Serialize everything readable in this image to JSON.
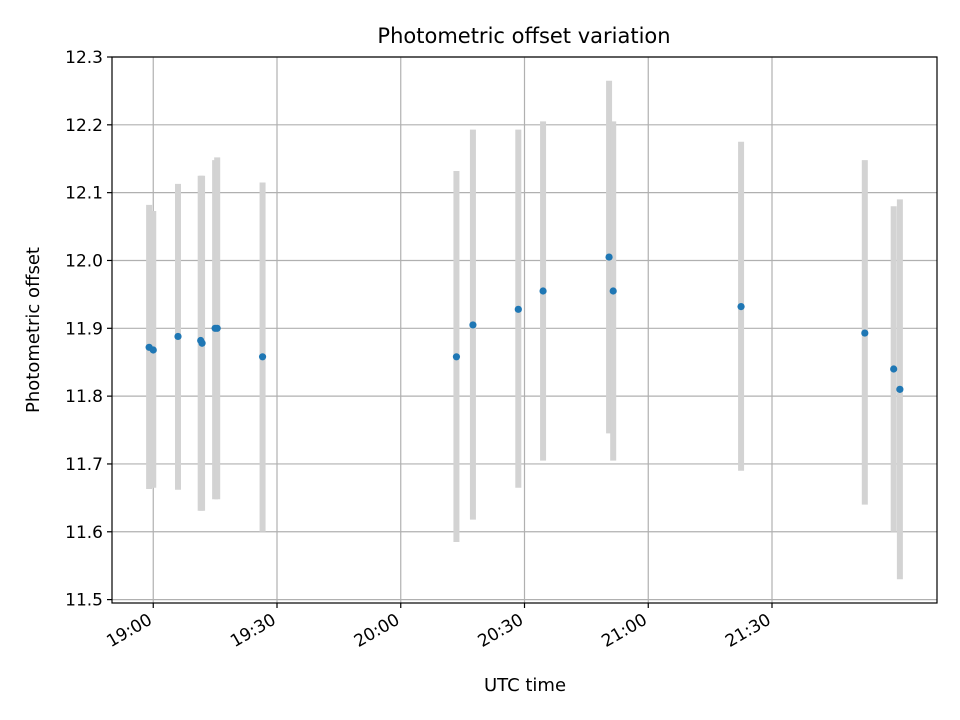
{
  "chart_data": {
    "type": "scatter",
    "title": "Photometric offset variation",
    "xlabel": "UTC time",
    "ylabel": "Photometric offset",
    "xlim": [
      "18:50:00",
      "22:10:00"
    ],
    "ylim": [
      11.495,
      12.3
    ],
    "grid": true,
    "x_ticks": [
      "19:00",
      "19:30",
      "20:00",
      "20:30",
      "21:00",
      "21:30"
    ],
    "y_ticks": [
      "11.5",
      "11.6",
      "11.7",
      "11.8",
      "11.9",
      "12.0",
      "12.1",
      "12.2",
      "12.3"
    ],
    "series": [
      {
        "color": "#1f77b4",
        "error_bar_color": "#d3d3d3",
        "points": [
          {
            "time": "18:59:00",
            "y": 11.872,
            "err_low": 11.663,
            "err_high": 12.082
          },
          {
            "time": "19:00:00",
            "y": 11.868,
            "err_low": 11.665,
            "err_high": 12.073
          },
          {
            "time": "19:06:00",
            "y": 11.888,
            "err_low": 11.662,
            "err_high": 12.113
          },
          {
            "time": "19:11:30",
            "y": 11.882,
            "err_low": 11.631,
            "err_high": 12.125
          },
          {
            "time": "19:11:50",
            "y": 11.878,
            "err_low": 11.631,
            "err_high": 12.125
          },
          {
            "time": "19:15:00",
            "y": 11.9,
            "err_low": 11.648,
            "err_high": 12.148
          },
          {
            "time": "19:15:30",
            "y": 11.9,
            "err_low": 11.648,
            "err_high": 12.152
          },
          {
            "time": "19:26:30",
            "y": 11.858,
            "err_low": 11.6,
            "err_high": 12.115
          },
          {
            "time": "20:13:30",
            "y": 11.858,
            "err_low": 11.585,
            "err_high": 12.132
          },
          {
            "time": "20:17:30",
            "y": 11.905,
            "err_low": 11.618,
            "err_high": 12.193
          },
          {
            "time": "20:28:30",
            "y": 11.928,
            "err_low": 11.665,
            "err_high": 12.193
          },
          {
            "time": "20:34:30",
            "y": 11.955,
            "err_low": 11.705,
            "err_high": 12.205
          },
          {
            "time": "20:50:30",
            "y": 12.005,
            "err_low": 11.745,
            "err_high": 12.265
          },
          {
            "time": "20:51:30",
            "y": 11.955,
            "err_low": 11.705,
            "err_high": 12.205
          },
          {
            "time": "21:22:30",
            "y": 11.932,
            "err_low": 11.69,
            "err_high": 12.175
          },
          {
            "time": "21:52:30",
            "y": 11.893,
            "err_low": 11.64,
            "err_high": 12.148
          },
          {
            "time": "21:59:30",
            "y": 11.84,
            "err_low": 11.6,
            "err_high": 12.08
          },
          {
            "time": "22:01:00",
            "y": 11.81,
            "err_low": 11.53,
            "err_high": 12.09
          }
        ]
      }
    ]
  }
}
